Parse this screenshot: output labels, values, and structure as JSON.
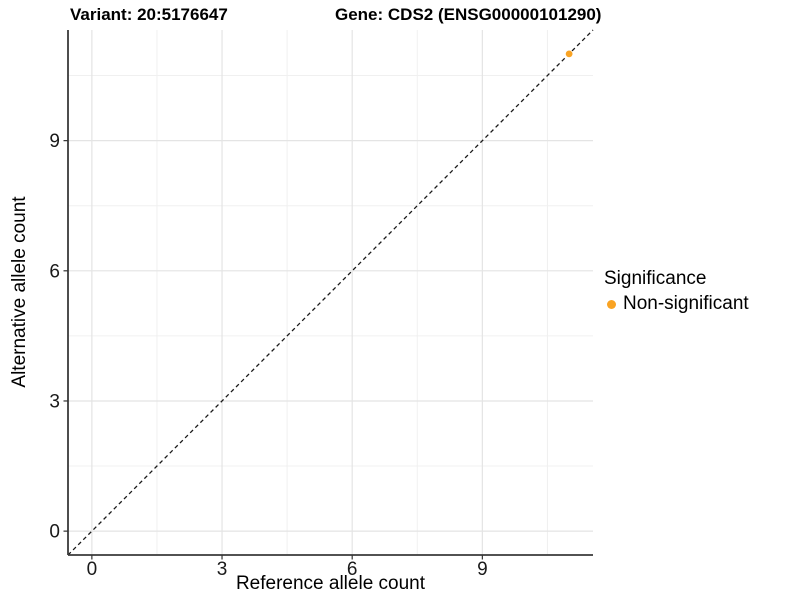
{
  "chart_data": {
    "type": "scatter",
    "title_left": "Variant: 20:5176647",
    "title_right": "Gene: CDS2 (ENSG00000101290)",
    "xlabel": "Reference allele count",
    "ylabel": "Alternative allele count",
    "xlim": [
      -0.55,
      11.55
    ],
    "ylim": [
      -0.55,
      11.55
    ],
    "x_ticks": [
      0,
      3,
      6,
      9
    ],
    "y_ticks": [
      0,
      3,
      6,
      9
    ],
    "x_minor_ticks": [
      1.5,
      4.5,
      7.5,
      10.5
    ],
    "y_minor_ticks": [
      1.5,
      4.5,
      7.5,
      10.5
    ],
    "grid": true,
    "panel_border": false,
    "background": "#FFFFFF",
    "reference_line": {
      "type": "identity",
      "slope": 1,
      "intercept": 0,
      "style": "dashed",
      "color": "#1A1A1A"
    },
    "series": [
      {
        "name": "Non-significant",
        "color": "#F9A323",
        "points": [
          {
            "x": 11,
            "y": 11
          }
        ]
      }
    ],
    "legend": {
      "title": "Significance",
      "position": "right",
      "items": [
        {
          "label": "Non-significant",
          "color": "#F9A323"
        }
      ]
    },
    "colors": {
      "grid_major": "#E4E4E4",
      "grid_minor": "#F0F0F0",
      "axis_line": "#3A3A3A",
      "tick_mark": "#333333",
      "tick_label": "#1A1A1A"
    }
  }
}
